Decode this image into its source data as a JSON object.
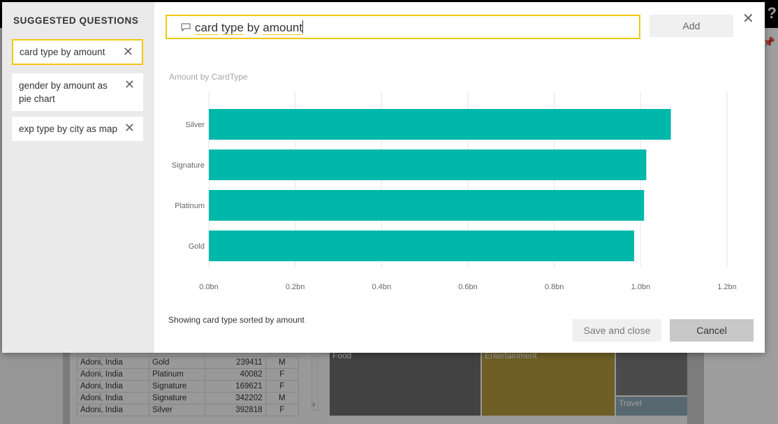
{
  "background": {
    "help_glyph": "?",
    "table_rows": [
      [
        "Adoni, India",
        "Gold",
        "239411",
        "M"
      ],
      [
        "Adoni, India",
        "Platinum",
        "40082",
        "F"
      ],
      [
        "Adoni, India",
        "Signature",
        "169621",
        "F"
      ],
      [
        "Adoni, India",
        "Signature",
        "342202",
        "M"
      ],
      [
        "Adoni, India",
        "Silver",
        "392818",
        "F"
      ]
    ],
    "treemap": {
      "food": "Food",
      "entertainment": "Entertainment",
      "travel": "Travel"
    }
  },
  "sidebar": {
    "title": "SUGGESTED QUESTIONS",
    "items": [
      {
        "label": "card type by amount",
        "selected": true
      },
      {
        "label": "gender by amount as pie chart",
        "selected": false
      },
      {
        "label": "exp type by city as map",
        "selected": false
      }
    ]
  },
  "question": {
    "words": [
      "card",
      "type",
      "by",
      "amount"
    ],
    "underlined": [
      true,
      true,
      false,
      true
    ]
  },
  "buttons": {
    "add": "Add",
    "save_and_close": "Save and close",
    "cancel": "Cancel"
  },
  "status_text": "Showing card type sorted by amount",
  "colors": {
    "bar": "#00b8aa",
    "accent": "#f2c811",
    "gridline": "#e6e6e6",
    "axis_text": "#666666"
  },
  "chart_data": {
    "type": "bar",
    "orientation": "horizontal",
    "title": "Amount by CardType",
    "categories": [
      "Silver",
      "Signature",
      "Platinum",
      "Gold"
    ],
    "values": [
      1.07,
      1.013,
      1.008,
      0.985
    ],
    "value_unit": "bn",
    "xlim": [
      0,
      1.2
    ],
    "xticks": [
      "0.0bn",
      "0.2bn",
      "0.4bn",
      "0.6bn",
      "0.8bn",
      "1.0bn",
      "1.2bn"
    ],
    "grid": true
  }
}
